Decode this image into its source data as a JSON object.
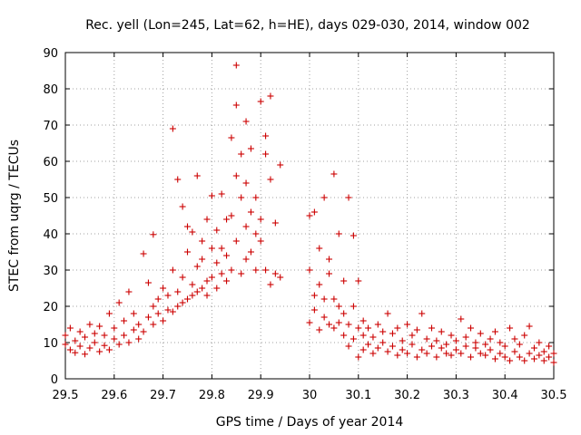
{
  "chart_data": {
    "type": "scatter",
    "title": "Rec. yell (Lon=245, Lat=62, h=HE), days 029-030, 2014, window 002",
    "xlabel": "GPS time / Days of year 2014",
    "ylabel": "STEC from uqrg / TECUs",
    "xlim": [
      29.5,
      30.5
    ],
    "ylim": [
      0,
      90
    ],
    "xticks": [
      29.5,
      29.6,
      29.7,
      29.8,
      29.9,
      30,
      30.1,
      30.2,
      30.3,
      30.4,
      30.5
    ],
    "xtick_labels": [
      "29.5",
      "29.6",
      "29.7",
      "29.8",
      "29.9",
      "30",
      "30.1",
      "30.2",
      "30.3",
      "30.4",
      "30.5"
    ],
    "yticks": [
      0,
      10,
      20,
      30,
      40,
      50,
      60,
      70,
      80,
      90
    ],
    "ytick_labels": [
      "0",
      "10",
      "20",
      "30",
      "40",
      "50",
      "60",
      "70",
      "80",
      "90"
    ],
    "grid": true,
    "marker": "plus",
    "color": "#cc0000",
    "series": [
      {
        "name": "STEC",
        "points": [
          [
            29.5,
            9.5
          ],
          [
            29.5,
            12.0
          ],
          [
            29.51,
            8.0
          ],
          [
            29.51,
            14.0
          ],
          [
            29.52,
            10.5
          ],
          [
            29.52,
            7.2
          ],
          [
            29.53,
            13.0
          ],
          [
            29.53,
            9.0
          ],
          [
            29.54,
            11.5
          ],
          [
            29.54,
            6.8
          ],
          [
            29.55,
            15.0
          ],
          [
            29.55,
            8.5
          ],
          [
            29.56,
            12.5
          ],
          [
            29.56,
            10.0
          ],
          [
            29.57,
            7.5
          ],
          [
            29.57,
            14.5
          ],
          [
            29.58,
            9.2
          ],
          [
            29.58,
            12.0
          ],
          [
            29.59,
            18.0
          ],
          [
            29.59,
            8.0
          ],
          [
            29.6,
            11.0
          ],
          [
            29.6,
            14.0
          ],
          [
            29.61,
            9.5
          ],
          [
            29.61,
            21.0
          ],
          [
            29.62,
            12.0
          ],
          [
            29.62,
            16.0
          ],
          [
            29.63,
            24.0
          ],
          [
            29.63,
            10.0
          ],
          [
            29.64,
            13.5
          ],
          [
            29.64,
            18.0
          ],
          [
            29.65,
            11.0
          ],
          [
            29.65,
            15.0
          ],
          [
            29.66,
            34.5
          ],
          [
            29.66,
            13.0
          ],
          [
            29.67,
            17.0
          ],
          [
            29.67,
            26.5
          ],
          [
            29.68,
            15.0
          ],
          [
            29.68,
            20.0
          ],
          [
            29.68,
            39.8
          ],
          [
            29.69,
            18.0
          ],
          [
            29.69,
            22.0
          ],
          [
            29.7,
            16.0
          ],
          [
            29.7,
            25.0
          ],
          [
            29.71,
            19.0
          ],
          [
            29.71,
            23.0
          ],
          [
            29.72,
            18.5
          ],
          [
            29.72,
            30.0
          ],
          [
            29.72,
            69.0
          ],
          [
            29.73,
            20.0
          ],
          [
            29.73,
            24.0
          ],
          [
            29.73,
            55.0
          ],
          [
            29.74,
            21.0
          ],
          [
            29.74,
            28.0
          ],
          [
            29.74,
            47.5
          ],
          [
            29.75,
            22.0
          ],
          [
            29.75,
            35.0
          ],
          [
            29.75,
            42.0
          ],
          [
            29.76,
            23.0
          ],
          [
            29.76,
            26.0
          ],
          [
            29.76,
            40.5
          ],
          [
            29.77,
            24.0
          ],
          [
            29.77,
            31.0
          ],
          [
            29.77,
            56.0
          ],
          [
            29.78,
            25.0
          ],
          [
            29.78,
            38.0
          ],
          [
            29.78,
            33.0
          ],
          [
            29.79,
            23.0
          ],
          [
            29.79,
            27.0
          ],
          [
            29.79,
            44.0
          ],
          [
            29.8,
            28.0
          ],
          [
            29.8,
            36.0
          ],
          [
            29.8,
            50.5
          ],
          [
            29.81,
            25.0
          ],
          [
            29.81,
            41.0
          ],
          [
            29.81,
            32.0
          ],
          [
            29.82,
            29.0
          ],
          [
            29.82,
            51.0
          ],
          [
            29.82,
            36.0
          ],
          [
            29.83,
            27.0
          ],
          [
            29.83,
            44.0
          ],
          [
            29.83,
            34.0
          ],
          [
            29.84,
            30.0
          ],
          [
            29.84,
            66.5
          ],
          [
            29.84,
            45.0
          ],
          [
            29.85,
            38.0
          ],
          [
            29.85,
            75.5
          ],
          [
            29.85,
            86.5
          ],
          [
            29.85,
            56.0
          ],
          [
            29.86,
            29.0
          ],
          [
            29.86,
            50.0
          ],
          [
            29.86,
            62.0
          ],
          [
            29.87,
            33.0
          ],
          [
            29.87,
            42.0
          ],
          [
            29.87,
            71.0
          ],
          [
            29.87,
            54.0
          ],
          [
            29.88,
            35.0
          ],
          [
            29.88,
            46.0
          ],
          [
            29.88,
            63.5
          ],
          [
            29.89,
            30.0
          ],
          [
            29.89,
            40.0
          ],
          [
            29.89,
            50.0
          ],
          [
            29.9,
            38.0
          ],
          [
            29.9,
            76.5
          ],
          [
            29.9,
            44.0
          ],
          [
            29.91,
            30.0
          ],
          [
            29.91,
            62.0
          ],
          [
            29.91,
            67.0
          ],
          [
            29.92,
            26.0
          ],
          [
            29.92,
            55.0
          ],
          [
            29.92,
            78.0
          ],
          [
            29.93,
            29.0
          ],
          [
            29.93,
            43.0
          ],
          [
            29.94,
            28.0
          ],
          [
            29.94,
            59.0
          ],
          [
            30.0,
            15.5
          ],
          [
            30.0,
            30.0
          ],
          [
            30.0,
            45.0
          ],
          [
            30.01,
            19.0
          ],
          [
            30.01,
            23.0
          ],
          [
            30.01,
            46.0
          ],
          [
            30.02,
            13.5
          ],
          [
            30.02,
            26.0
          ],
          [
            30.02,
            36.0
          ],
          [
            30.03,
            17.0
          ],
          [
            30.03,
            22.0
          ],
          [
            30.03,
            50.0
          ],
          [
            30.04,
            15.0
          ],
          [
            30.04,
            29.0
          ],
          [
            30.04,
            33.0
          ],
          [
            30.05,
            14.0
          ],
          [
            30.05,
            22.0
          ],
          [
            30.05,
            56.5
          ],
          [
            30.06,
            15.5
          ],
          [
            30.06,
            20.0
          ],
          [
            30.06,
            40.0
          ],
          [
            30.07,
            12.0
          ],
          [
            30.07,
            18.0
          ],
          [
            30.07,
            27.0
          ],
          [
            30.08,
            9.0
          ],
          [
            30.08,
            15.0
          ],
          [
            30.08,
            50.0
          ],
          [
            30.09,
            11.0
          ],
          [
            30.09,
            20.0
          ],
          [
            30.09,
            39.5
          ],
          [
            30.1,
            6.0
          ],
          [
            30.1,
            14.0
          ],
          [
            30.1,
            27.0
          ],
          [
            30.11,
            8.0
          ],
          [
            30.11,
            12.0
          ],
          [
            30.11,
            16.0
          ],
          [
            30.12,
            9.5
          ],
          [
            30.12,
            14.0
          ],
          [
            30.13,
            7.0
          ],
          [
            30.13,
            11.5
          ],
          [
            30.14,
            8.5
          ],
          [
            30.14,
            15.0
          ],
          [
            30.15,
            10.0
          ],
          [
            30.15,
            13.0
          ],
          [
            30.16,
            7.5
          ],
          [
            30.16,
            18.0
          ],
          [
            30.17,
            9.0
          ],
          [
            30.17,
            12.5
          ],
          [
            30.18,
            6.5
          ],
          [
            30.18,
            14.0
          ],
          [
            30.19,
            8.0
          ],
          [
            30.19,
            10.5
          ],
          [
            30.2,
            7.0
          ],
          [
            30.2,
            15.0
          ],
          [
            30.21,
            9.5
          ],
          [
            30.21,
            12.0
          ],
          [
            30.22,
            6.0
          ],
          [
            30.22,
            13.5
          ],
          [
            30.23,
            8.0
          ],
          [
            30.23,
            18.0
          ],
          [
            30.24,
            7.0
          ],
          [
            30.24,
            11.0
          ],
          [
            30.25,
            9.0
          ],
          [
            30.25,
            14.0
          ],
          [
            30.26,
            6.0
          ],
          [
            30.26,
            10.5
          ],
          [
            30.27,
            8.5
          ],
          [
            30.27,
            13.0
          ],
          [
            30.28,
            7.0
          ],
          [
            30.28,
            9.5
          ],
          [
            30.29,
            6.5
          ],
          [
            30.29,
            12.0
          ],
          [
            30.3,
            8.0
          ],
          [
            30.3,
            10.5
          ],
          [
            30.31,
            7.0
          ],
          [
            30.31,
            16.5
          ],
          [
            30.32,
            9.0
          ],
          [
            30.32,
            11.5
          ],
          [
            30.33,
            6.0
          ],
          [
            30.33,
            14.0
          ],
          [
            30.34,
            8.5
          ],
          [
            30.34,
            10.0
          ],
          [
            30.35,
            7.0
          ],
          [
            30.35,
            12.5
          ],
          [
            30.36,
            6.5
          ],
          [
            30.36,
            9.5
          ],
          [
            30.37,
            8.0
          ],
          [
            30.37,
            11.0
          ],
          [
            30.38,
            5.5
          ],
          [
            30.38,
            13.0
          ],
          [
            30.39,
            7.0
          ],
          [
            30.39,
            10.0
          ],
          [
            30.4,
            6.0
          ],
          [
            30.4,
            9.0
          ],
          [
            30.41,
            5.0
          ],
          [
            30.41,
            14.0
          ],
          [
            30.42,
            7.5
          ],
          [
            30.42,
            11.0
          ],
          [
            30.43,
            6.0
          ],
          [
            30.43,
            9.5
          ],
          [
            30.44,
            5.0
          ],
          [
            30.44,
            12.0
          ],
          [
            30.45,
            7.0
          ],
          [
            30.45,
            14.5
          ],
          [
            30.46,
            5.5
          ],
          [
            30.46,
            8.5
          ],
          [
            30.47,
            6.5
          ],
          [
            30.47,
            10.0
          ],
          [
            30.48,
            5.0
          ],
          [
            30.48,
            7.5
          ],
          [
            30.49,
            6.0
          ],
          [
            30.49,
            9.0
          ],
          [
            30.5,
            4.5
          ],
          [
            30.5,
            7.0
          ]
        ]
      }
    ]
  }
}
